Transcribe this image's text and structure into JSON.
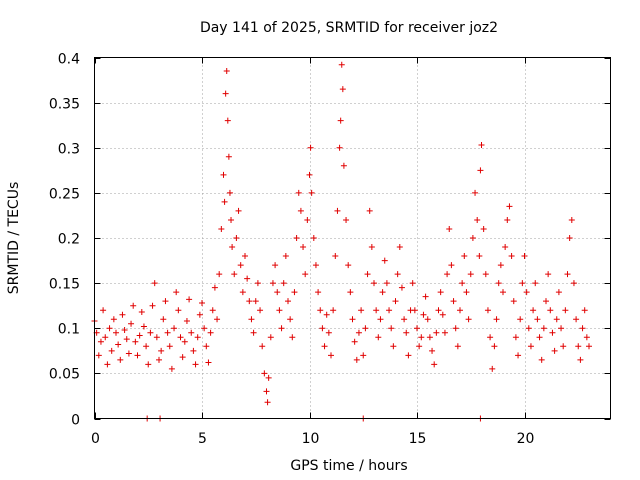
{
  "chart_data": {
    "type": "scatter",
    "title": "Day 141 of 2025, SRMTID for receiver joz2",
    "xlabel": "GPS time / hours",
    "ylabel": "SRMTID / TECUs",
    "xlim": [
      0,
      24
    ],
    "ylim": [
      0,
      0.4
    ],
    "grid": true,
    "marker": "+",
    "color": "#e00000",
    "x_ticks": [
      0,
      5,
      10,
      15,
      20
    ],
    "x_tick_labels": [
      "0",
      "5",
      "10",
      "15",
      "20"
    ],
    "y_ticks": [
      0,
      0.05,
      0.1,
      0.15,
      0.2,
      0.25,
      0.3,
      0.35,
      0.4
    ],
    "y_tick_labels": [
      "0",
      "0.05",
      "0.1",
      "0.15",
      "0.2",
      "0.25",
      "0.3",
      "0.35",
      "0.4"
    ],
    "series": [
      {
        "name": "SRMTID",
        "points": [
          [
            0.0,
            0.108
          ],
          [
            0.1,
            0.095
          ],
          [
            0.2,
            0.07
          ],
          [
            0.3,
            0.085
          ],
          [
            0.4,
            0.12
          ],
          [
            0.5,
            0.09
          ],
          [
            0.6,
            0.06
          ],
          [
            0.7,
            0.1
          ],
          [
            0.8,
            0.075
          ],
          [
            0.9,
            0.11
          ],
          [
            1.0,
            0.095
          ],
          [
            1.1,
            0.082
          ],
          [
            1.2,
            0.065
          ],
          [
            1.3,
            0.115
          ],
          [
            1.4,
            0.098
          ],
          [
            1.5,
            0.088
          ],
          [
            1.6,
            0.072
          ],
          [
            1.7,
            0.105
          ],
          [
            1.8,
            0.125
          ],
          [
            1.9,
            0.085
          ],
          [
            2.0,
            0.07
          ],
          [
            2.1,
            0.092
          ],
          [
            2.2,
            0.118
          ],
          [
            2.3,
            0.102
          ],
          [
            2.4,
            0.08
          ],
          [
            2.5,
            0.06
          ],
          [
            2.6,
            0.095
          ],
          [
            2.7,
            0.125
          ],
          [
            2.8,
            0.15
          ],
          [
            2.9,
            0.09
          ],
          [
            3.0,
            0.065
          ],
          [
            3.1,
            0.075
          ],
          [
            3.2,
            0.11
          ],
          [
            3.3,
            0.13
          ],
          [
            3.4,
            0.095
          ],
          [
            3.5,
            0.08
          ],
          [
            3.6,
            0.055
          ],
          [
            3.7,
            0.1
          ],
          [
            3.8,
            0.14
          ],
          [
            3.9,
            0.12
          ],
          [
            4.0,
            0.09
          ],
          [
            4.1,
            0.068
          ],
          [
            4.2,
            0.085
          ],
          [
            4.3,
            0.108
          ],
          [
            4.4,
            0.132
          ],
          [
            4.5,
            0.095
          ],
          [
            4.6,
            0.075
          ],
          [
            4.7,
            0.06
          ],
          [
            4.8,
            0.09
          ],
          [
            4.9,
            0.115
          ],
          [
            5.0,
            0.128
          ],
          [
            5.1,
            0.1
          ],
          [
            5.2,
            0.08
          ],
          [
            5.3,
            0.062
          ],
          [
            5.4,
            0.095
          ],
          [
            5.5,
            0.12
          ],
          [
            5.6,
            0.145
          ],
          [
            5.7,
            0.11
          ],
          [
            5.8,
            0.16
          ],
          [
            5.9,
            0.21
          ],
          [
            6.0,
            0.27
          ],
          [
            6.05,
            0.24
          ],
          [
            6.1,
            0.36
          ],
          [
            6.15,
            0.385
          ],
          [
            6.2,
            0.33
          ],
          [
            6.25,
            0.29
          ],
          [
            6.3,
            0.25
          ],
          [
            6.35,
            0.22
          ],
          [
            6.4,
            0.19
          ],
          [
            6.5,
            0.16
          ],
          [
            6.6,
            0.2
          ],
          [
            6.7,
            0.23
          ],
          [
            6.8,
            0.17
          ],
          [
            6.9,
            0.14
          ],
          [
            7.0,
            0.18
          ],
          [
            7.1,
            0.155
          ],
          [
            7.2,
            0.13
          ],
          [
            7.3,
            0.11
          ],
          [
            7.4,
            0.095
          ],
          [
            7.5,
            0.13
          ],
          [
            7.6,
            0.15
          ],
          [
            7.7,
            0.12
          ],
          [
            7.8,
            0.08
          ],
          [
            7.9,
            0.05
          ],
          [
            8.0,
            0.03
          ],
          [
            8.05,
            0.018
          ],
          [
            8.1,
            0.045
          ],
          [
            8.2,
            0.09
          ],
          [
            8.3,
            0.15
          ],
          [
            8.4,
            0.17
          ],
          [
            8.5,
            0.14
          ],
          [
            8.6,
            0.12
          ],
          [
            8.7,
            0.1
          ],
          [
            8.8,
            0.15
          ],
          [
            8.9,
            0.18
          ],
          [
            9.0,
            0.13
          ],
          [
            9.1,
            0.11
          ],
          [
            9.2,
            0.09
          ],
          [
            9.3,
            0.14
          ],
          [
            9.4,
            0.2
          ],
          [
            9.5,
            0.25
          ],
          [
            9.6,
            0.23
          ],
          [
            9.7,
            0.19
          ],
          [
            9.8,
            0.16
          ],
          [
            9.9,
            0.22
          ],
          [
            10.0,
            0.27
          ],
          [
            10.05,
            0.3
          ],
          [
            10.1,
            0.25
          ],
          [
            10.2,
            0.2
          ],
          [
            10.3,
            0.17
          ],
          [
            10.4,
            0.14
          ],
          [
            10.5,
            0.12
          ],
          [
            10.6,
            0.1
          ],
          [
            10.7,
            0.08
          ],
          [
            10.8,
            0.115
          ],
          [
            10.9,
            0.095
          ],
          [
            11.0,
            0.07
          ],
          [
            11.1,
            0.12
          ],
          [
            11.2,
            0.18
          ],
          [
            11.3,
            0.23
          ],
          [
            11.4,
            0.3
          ],
          [
            11.45,
            0.33
          ],
          [
            11.5,
            0.392
          ],
          [
            11.55,
            0.365
          ],
          [
            11.6,
            0.28
          ],
          [
            11.7,
            0.22
          ],
          [
            11.8,
            0.17
          ],
          [
            11.9,
            0.14
          ],
          [
            12.0,
            0.11
          ],
          [
            12.1,
            0.085
          ],
          [
            12.2,
            0.065
          ],
          [
            12.3,
            0.095
          ],
          [
            12.4,
            0.12
          ],
          [
            12.5,
            0.07
          ],
          [
            12.6,
            0.1
          ],
          [
            12.7,
            0.16
          ],
          [
            12.8,
            0.23
          ],
          [
            12.9,
            0.19
          ],
          [
            13.0,
            0.15
          ],
          [
            13.1,
            0.12
          ],
          [
            13.2,
            0.09
          ],
          [
            13.3,
            0.11
          ],
          [
            13.4,
            0.14
          ],
          [
            13.5,
            0.175
          ],
          [
            13.6,
            0.15
          ],
          [
            13.7,
            0.12
          ],
          [
            13.8,
            0.1
          ],
          [
            13.9,
            0.08
          ],
          [
            14.0,
            0.13
          ],
          [
            14.1,
            0.16
          ],
          [
            14.2,
            0.19
          ],
          [
            14.3,
            0.145
          ],
          [
            14.4,
            0.11
          ],
          [
            14.5,
            0.095
          ],
          [
            14.6,
            0.07
          ],
          [
            14.7,
            0.12
          ],
          [
            14.8,
            0.15
          ],
          [
            14.9,
            0.12
          ],
          [
            15.0,
            0.1
          ],
          [
            15.1,
            0.08
          ],
          [
            15.2,
            0.09
          ],
          [
            15.3,
            0.115
          ],
          [
            15.4,
            0.135
          ],
          [
            15.5,
            0.11
          ],
          [
            15.6,
            0.09
          ],
          [
            15.7,
            0.075
          ],
          [
            15.8,
            0.06
          ],
          [
            15.9,
            0.095
          ],
          [
            16.0,
            0.12
          ],
          [
            16.1,
            0.14
          ],
          [
            16.2,
            0.115
          ],
          [
            16.3,
            0.095
          ],
          [
            16.4,
            0.16
          ],
          [
            16.5,
            0.21
          ],
          [
            16.6,
            0.17
          ],
          [
            16.7,
            0.13
          ],
          [
            16.8,
            0.1
          ],
          [
            16.9,
            0.08
          ],
          [
            17.0,
            0.12
          ],
          [
            17.1,
            0.15
          ],
          [
            17.2,
            0.18
          ],
          [
            17.3,
            0.14
          ],
          [
            17.4,
            0.11
          ],
          [
            17.5,
            0.16
          ],
          [
            17.6,
            0.2
          ],
          [
            17.7,
            0.25
          ],
          [
            17.8,
            0.22
          ],
          [
            17.9,
            0.18
          ],
          [
            17.95,
            0.275
          ],
          [
            18.0,
            0.303
          ],
          [
            18.1,
            0.21
          ],
          [
            18.2,
            0.16
          ],
          [
            18.3,
            0.12
          ],
          [
            18.4,
            0.09
          ],
          [
            18.5,
            0.055
          ],
          [
            18.6,
            0.08
          ],
          [
            18.7,
            0.11
          ],
          [
            18.8,
            0.15
          ],
          [
            18.9,
            0.17
          ],
          [
            19.0,
            0.14
          ],
          [
            19.1,
            0.19
          ],
          [
            19.2,
            0.22
          ],
          [
            19.3,
            0.235
          ],
          [
            19.4,
            0.18
          ],
          [
            19.5,
            0.13
          ],
          [
            19.6,
            0.09
          ],
          [
            19.7,
            0.07
          ],
          [
            19.8,
            0.11
          ],
          [
            19.9,
            0.15
          ],
          [
            20.0,
            0.18
          ],
          [
            20.1,
            0.14
          ],
          [
            20.2,
            0.1
          ],
          [
            20.3,
            0.08
          ],
          [
            20.4,
            0.12
          ],
          [
            20.5,
            0.15
          ],
          [
            20.6,
            0.11
          ],
          [
            20.7,
            0.09
          ],
          [
            20.8,
            0.065
          ],
          [
            20.9,
            0.1
          ],
          [
            21.0,
            0.13
          ],
          [
            21.1,
            0.16
          ],
          [
            21.2,
            0.12
          ],
          [
            21.3,
            0.095
          ],
          [
            21.4,
            0.075
          ],
          [
            21.5,
            0.11
          ],
          [
            21.6,
            0.14
          ],
          [
            21.7,
            0.1
          ],
          [
            21.8,
            0.08
          ],
          [
            21.9,
            0.12
          ],
          [
            22.0,
            0.16
          ],
          [
            22.1,
            0.2
          ],
          [
            22.2,
            0.22
          ],
          [
            22.3,
            0.15
          ],
          [
            22.4,
            0.11
          ],
          [
            22.5,
            0.08
          ],
          [
            22.6,
            0.065
          ],
          [
            22.7,
            0.1
          ],
          [
            22.8,
            0.12
          ],
          [
            22.9,
            0.09
          ],
          [
            23.0,
            0.08
          ]
        ]
      },
      {
        "name": "Zero-value markers",
        "points": [
          [
            2.45,
            0.0
          ],
          [
            3.05,
            0.0
          ],
          [
            12.5,
            0.0
          ],
          [
            17.95,
            0.0
          ]
        ]
      }
    ]
  }
}
